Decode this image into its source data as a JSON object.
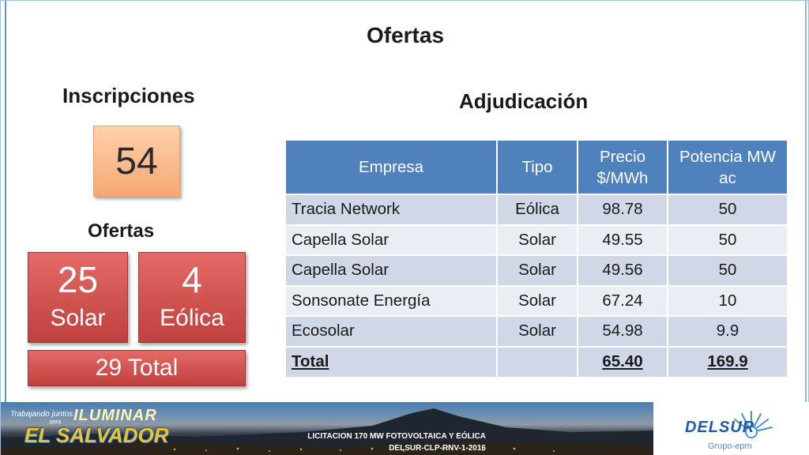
{
  "slide": {
    "title": "Ofertas",
    "inscripciones": {
      "heading": "Inscripciones",
      "value": "54"
    },
    "ofertas": {
      "heading": "Ofertas",
      "solar": {
        "value": "25",
        "label": "Solar"
      },
      "eolica": {
        "value": "4",
        "label": "Eólica"
      },
      "total_label": "29 Total"
    },
    "adjudicacion": {
      "heading": "Adjudicación",
      "columns": [
        "Empresa",
        "Tipo",
        "Precio $/MWh",
        "Potencia MW ac"
      ],
      "rows": [
        [
          "Tracia Network",
          "Eólica",
          "98.78",
          "50"
        ],
        [
          "Capella Solar",
          "Solar",
          "49.55",
          "50"
        ],
        [
          "Capella Solar",
          "Solar",
          "49.56",
          "50"
        ],
        [
          "Sonsonate Energía",
          "Solar",
          "67.24",
          "10"
        ],
        [
          "Ecosolar",
          "Solar",
          "54.98",
          "9.9"
        ]
      ],
      "total": {
        "label": "Total",
        "precio": "65.40",
        "potencia": "169.9"
      }
    }
  },
  "footer": {
    "slogan_line1": "Trabajando juntos",
    "slogan_line1b": "para",
    "slogan_line2": "ILUMINAR",
    "slogan_line3": "EL SALVADOR",
    "licitacion_line1": "LICITACION 170 MW FOTOVOLTAICA Y EÓLICA",
    "licitacion_line2": "DELSUR-CLP-RNV-1-2016",
    "brand": "DELSUR",
    "group": "Grupo-epm"
  },
  "colors": {
    "table_header": "#4f81bd",
    "row_dark": "#d0d8e8",
    "row_light": "#e9edf4",
    "red_box": "#c0504d",
    "orange_box": "#f5a772",
    "brand_blue": "#1e5aa8"
  }
}
